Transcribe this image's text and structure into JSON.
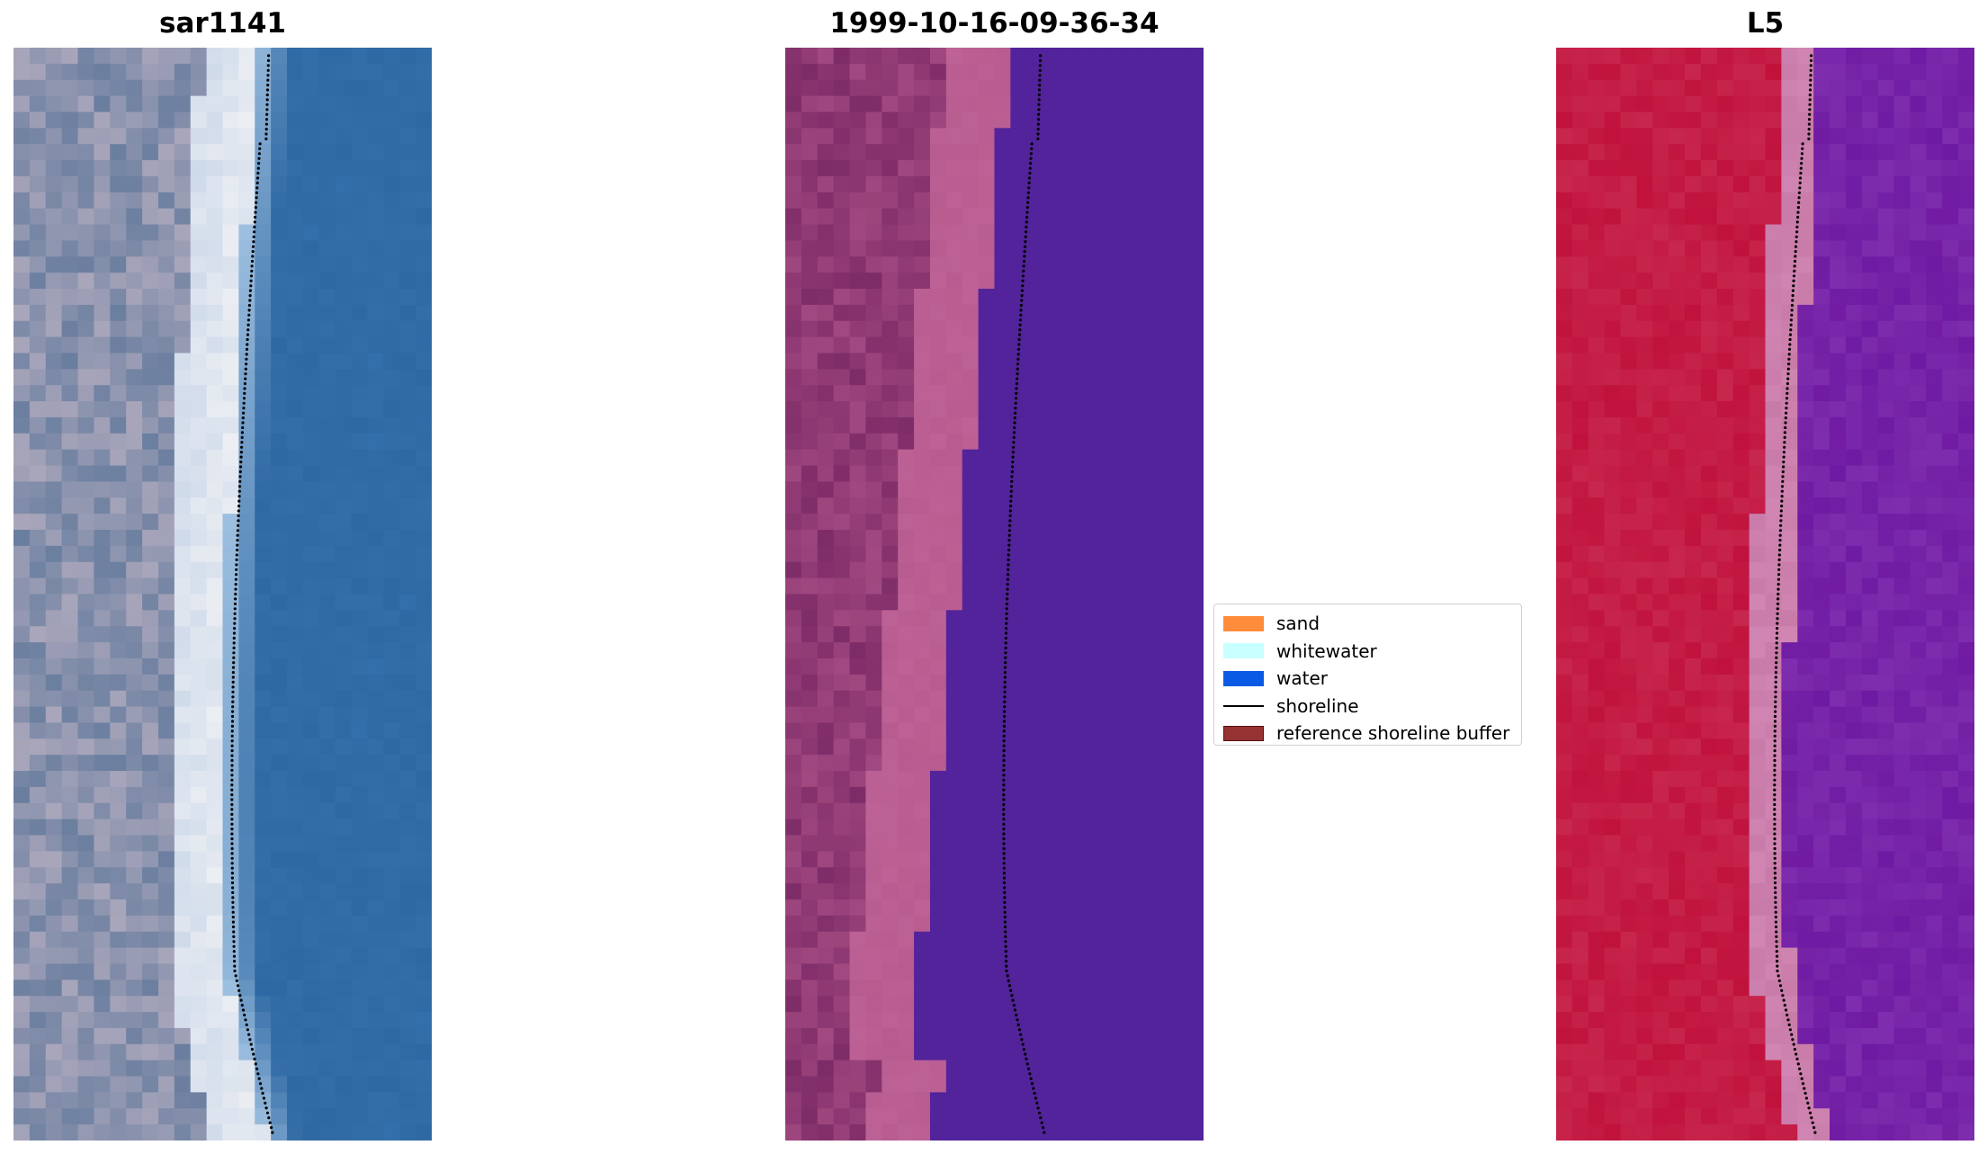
{
  "panels": [
    {
      "title": "sar1141",
      "theme": "rgb"
    },
    {
      "title": "1999-10-16-09-36-34",
      "theme": "class"
    },
    {
      "title": "L5",
      "theme": "index"
    }
  ],
  "legend": {
    "items": [
      {
        "label": "sand",
        "kind": "patch",
        "color": "#ff8c3a"
      },
      {
        "label": "whitewater",
        "kind": "patch",
        "color": "#c8ffff"
      },
      {
        "label": "water",
        "kind": "patch",
        "color": "#0a5ae6"
      },
      {
        "label": "shoreline",
        "kind": "line",
        "color": "#000000"
      },
      {
        "label": "reference shoreline buffer",
        "kind": "patch",
        "color": "#963232"
      }
    ]
  },
  "colors": {
    "rgb_sand": "#a9a6bb",
    "rgb_white": "#eef0f4",
    "rgb_water": "#2f69a4",
    "class_land_dark": "#7e2c68",
    "class_land_light": "#b85b90",
    "class_water": "#52239a",
    "index_land": "#c0123c",
    "index_beach": "#c87aa8",
    "index_water": "#6f1aa2",
    "shoreline": "#000000"
  }
}
